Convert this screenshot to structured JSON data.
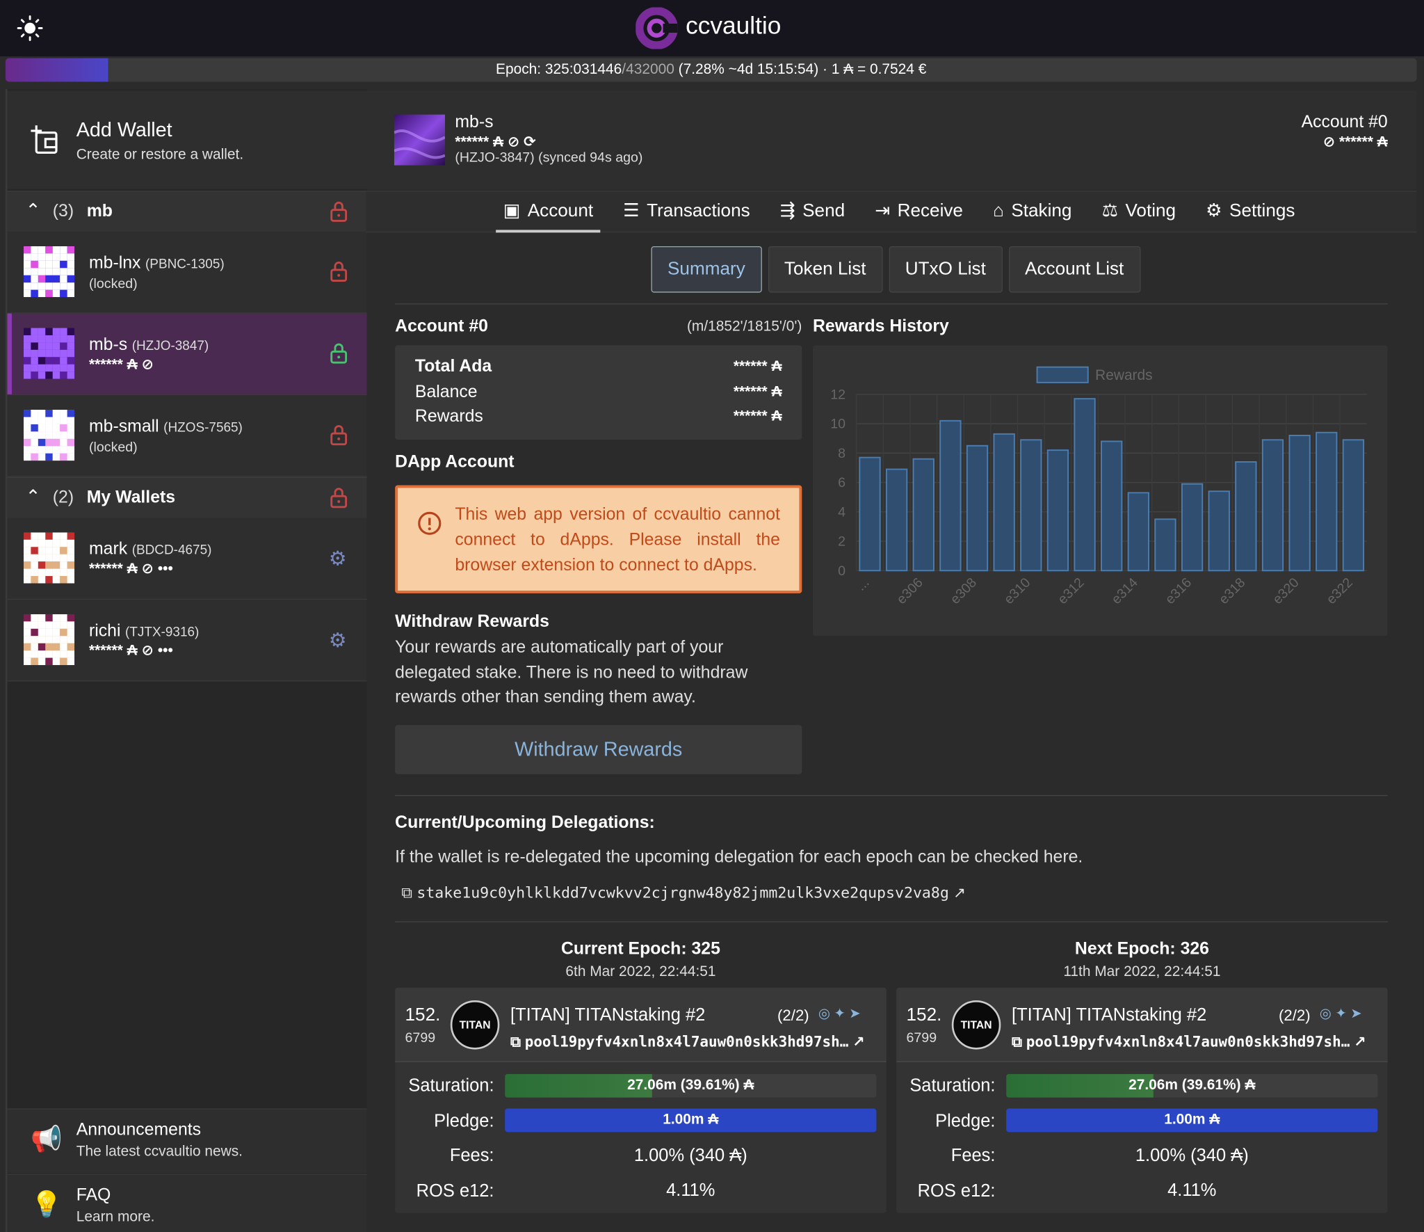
{
  "header": {
    "brand": "ccvaultio"
  },
  "epoch_bar": {
    "epoch": "Epoch: 325:031446",
    "total": "/432000",
    "details": " (7.28% ~4d 15:15:54) · 1 ₳ = 0.7524 €",
    "progress": 7.28
  },
  "sidebar": {
    "add_wallet": {
      "title": "Add Wallet",
      "subtitle": "Create or restore a wallet."
    },
    "groups": [
      {
        "count": "(3)",
        "name": "mb",
        "wallets": [
          {
            "name": "mb-lnx",
            "id": "(PBNC-1305)",
            "status": "(locked)"
          },
          {
            "name": "mb-s",
            "id": "(HZJO-3847)",
            "balance": "****** ₳"
          },
          {
            "name": "mb-small",
            "id": "(HZOS-7565)",
            "status": "(locked)"
          }
        ]
      },
      {
        "count": "(2)",
        "name": "My Wallets",
        "wallets": [
          {
            "name": "mark",
            "id": "(BDCD-4675)",
            "balance": "****** ₳"
          },
          {
            "name": "richi",
            "id": "(TJTX-9316)",
            "balance": "****** ₳"
          }
        ]
      }
    ],
    "footer": [
      {
        "title": "Announcements",
        "subtitle": "The latest ccvaultio news."
      },
      {
        "title": "FAQ",
        "subtitle": "Learn more."
      }
    ]
  },
  "wallet_header": {
    "name": "mb-s",
    "balance": "****** ₳",
    "sub": "(HZJO-3847) (synced 94s ago)",
    "account": "Account #0",
    "account_balance": "****** ₳"
  },
  "tabs": [
    "Account",
    "Transactions",
    "Send",
    "Receive",
    "Staking",
    "Voting",
    "Settings"
  ],
  "subtabs": [
    "Summary",
    "Token List",
    "UTxO List",
    "Account List"
  ],
  "account": {
    "title": "Account #0",
    "path": "(m/1852'/1815'/0')",
    "rows": [
      {
        "label": "Total Ada",
        "value": "****** ₳"
      },
      {
        "label": "Balance",
        "value": "****** ₳"
      },
      {
        "label": "Rewards",
        "value": "****** ₳"
      }
    ]
  },
  "dapp": {
    "title": "DApp Account",
    "warning": "This web app version of ccvaultio cannot connect to dApps. Please install the browser extension to connect to dApps."
  },
  "withdraw": {
    "title": "Withdraw Rewards",
    "text": "Your rewards are automatically part of your delegated stake. There is no need to withdraw rewards other than sending them away.",
    "button": "Withdraw Rewards"
  },
  "delegations": {
    "title": "Current/Upcoming Delegations:",
    "text": "If the wallet is re-delegated the upcoming delegation for each epoch can be checked here.",
    "stake": "stake1u9c0yhlklkdd7vcwkvv2cjrgnw48y82jmm2ulk3vxe2qupsv2va8g"
  },
  "epochs": [
    {
      "heading": "Current Epoch: 325",
      "date": "6th Mar 2022, 22:44:51",
      "rank": "152.",
      "number": "6799",
      "logo": "TITAN",
      "pool": "[TITAN] TITANstaking #2",
      "count": "(2/2)",
      "pool_id": "pool19pyfv4xnln8x4l7auw0n0skk3hd97sh…",
      "labels": [
        "Saturation:",
        "Pledge:",
        "Fees:",
        "ROS e12:"
      ],
      "saturation": "27.06m (39.61%) ₳",
      "saturation_pct": 39.61,
      "pledge": "1.00m ₳",
      "fees": "1.00% (340 ₳)",
      "ros": "4.11%"
    },
    {
      "heading": "Next Epoch: 326",
      "date": "11th Mar 2022, 22:44:51",
      "rank": "152.",
      "number": "6799",
      "logo": "TITAN",
      "pool": "[TITAN] TITANstaking #2",
      "count": "(2/2)",
      "pool_id": "pool19pyfv4xnln8x4l7auw0n0skk3hd97sh…",
      "labels": [
        "Saturation:",
        "Pledge:",
        "Fees:",
        "ROS e12:"
      ],
      "saturation": "27.06m (39.61%) ₳",
      "saturation_pct": 39.61,
      "pledge": "1.00m ₳",
      "fees": "1.00% (340 ₳)",
      "ros": "4.11%"
    }
  ],
  "chart_data": {
    "type": "bar",
    "title": "Rewards History",
    "categories": [
      "...",
      null,
      "e306",
      null,
      "e308",
      null,
      "e310",
      null,
      "e312",
      null,
      "e314",
      null,
      "e316",
      null,
      "e318",
      null,
      "e320",
      null,
      "e322"
    ],
    "series": [
      {
        "name": "Rewards",
        "color": "#2f4e70",
        "values": [
          7.7,
          6.9,
          7.6,
          10.2,
          8.5,
          9.3,
          8.9,
          8.2,
          11.7,
          8.8,
          5.3,
          3.5,
          5.9,
          5.4,
          7.4,
          8.9,
          9.2,
          9.4,
          8.9
        ]
      }
    ],
    "ylim": [
      0,
      12
    ],
    "yticks": [
      0,
      2,
      4,
      6,
      8,
      10,
      12
    ],
    "grid": true,
    "legend": "top"
  }
}
